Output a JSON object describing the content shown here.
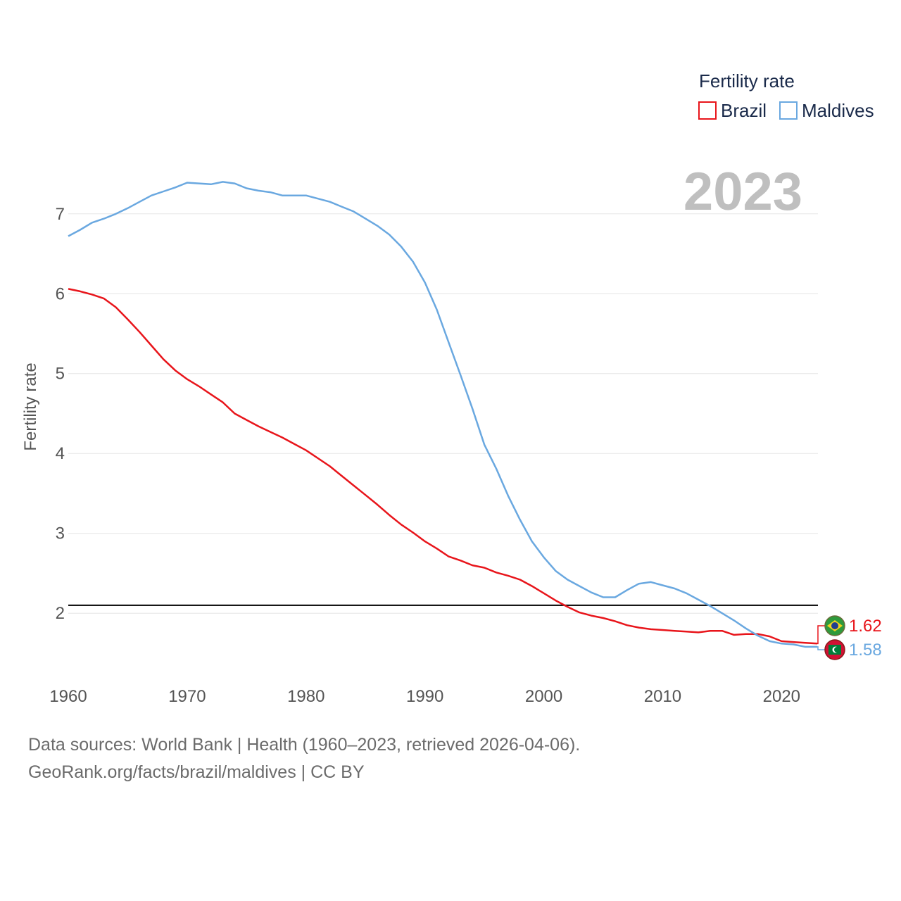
{
  "chart_data": {
    "type": "line",
    "title": "",
    "year_label": "2023",
    "ylabel": "Fertility rate",
    "xlabel": "",
    "xlim": [
      1960,
      2023
    ],
    "ylim": [
      1.2,
      7.65
    ],
    "xticks": [
      1960,
      1970,
      1980,
      1990,
      2000,
      2010,
      2020
    ],
    "yticks": [
      2,
      3,
      4,
      5,
      6,
      7
    ],
    "reference_line": 2.1,
    "legend": {
      "title": "Fertility rate",
      "placement": "top-right"
    },
    "x": [
      1960,
      1961,
      1962,
      1963,
      1964,
      1965,
      1966,
      1967,
      1968,
      1969,
      1970,
      1971,
      1972,
      1973,
      1974,
      1975,
      1976,
      1977,
      1978,
      1979,
      1980,
      1981,
      1982,
      1983,
      1984,
      1985,
      1986,
      1987,
      1988,
      1989,
      1990,
      1991,
      1992,
      1993,
      1994,
      1995,
      1996,
      1997,
      1998,
      1999,
      2000,
      2001,
      2002,
      2003,
      2004,
      2005,
      2006,
      2007,
      2008,
      2009,
      2010,
      2011,
      2012,
      2013,
      2014,
      2015,
      2016,
      2017,
      2018,
      2019,
      2020,
      2021,
      2022,
      2023
    ],
    "series": [
      {
        "name": "Brazil",
        "color": "#e8151b",
        "end_label": "1.62",
        "flag": "brazil-flag-icon",
        "values": [
          6.06,
          6.03,
          5.99,
          5.94,
          5.83,
          5.68,
          5.52,
          5.35,
          5.18,
          5.04,
          4.93,
          4.84,
          4.74,
          4.64,
          4.5,
          4.42,
          4.34,
          4.27,
          4.2,
          4.12,
          4.04,
          3.94,
          3.84,
          3.72,
          3.6,
          3.48,
          3.36,
          3.23,
          3.11,
          3.01,
          2.9,
          2.81,
          2.71,
          2.66,
          2.6,
          2.57,
          2.51,
          2.47,
          2.42,
          2.34,
          2.25,
          2.16,
          2.08,
          2.01,
          1.97,
          1.94,
          1.9,
          1.85,
          1.82,
          1.8,
          1.79,
          1.78,
          1.77,
          1.76,
          1.78,
          1.78,
          1.73,
          1.74,
          1.74,
          1.71,
          1.65,
          1.64,
          1.63,
          1.62
        ]
      },
      {
        "name": "Maldives",
        "color": "#6aa8e0",
        "end_label": "1.58",
        "flag": "maldives-flag-icon",
        "values": [
          6.72,
          6.8,
          6.89,
          6.94,
          7.0,
          7.07,
          7.15,
          7.23,
          7.28,
          7.33,
          7.39,
          7.38,
          7.37,
          7.4,
          7.38,
          7.32,
          7.29,
          7.27,
          7.23,
          7.23,
          7.23,
          7.19,
          7.15,
          7.09,
          7.03,
          6.94,
          6.85,
          6.74,
          6.59,
          6.4,
          6.14,
          5.8,
          5.39,
          4.98,
          4.56,
          4.11,
          3.81,
          3.47,
          3.17,
          2.9,
          2.7,
          2.53,
          2.42,
          2.34,
          2.26,
          2.2,
          2.2,
          2.29,
          2.37,
          2.39,
          2.35,
          2.31,
          2.25,
          2.17,
          2.09,
          2.0,
          1.91,
          1.81,
          1.72,
          1.65,
          1.62,
          1.61,
          1.58,
          1.58
        ]
      }
    ]
  },
  "footer": {
    "line1": "Data sources: World Bank | Health (1960–2023, retrieved 2026-04-06).",
    "line2": "GeoRank.org/facts/brazil/maldives | CC BY"
  }
}
